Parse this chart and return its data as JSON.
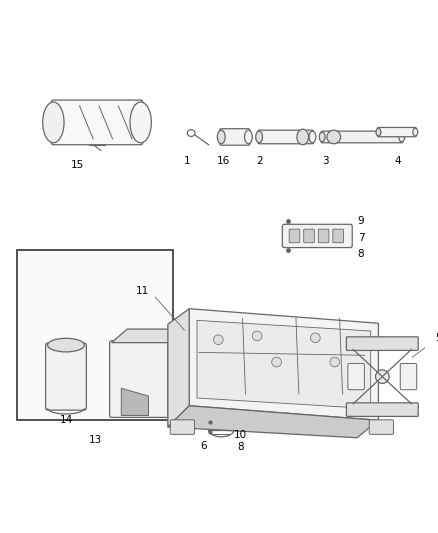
{
  "background_color": "#ffffff",
  "line_color": "#666666",
  "label_color": "#000000",
  "figsize": [
    4.38,
    5.33
  ],
  "dpi": 100
}
